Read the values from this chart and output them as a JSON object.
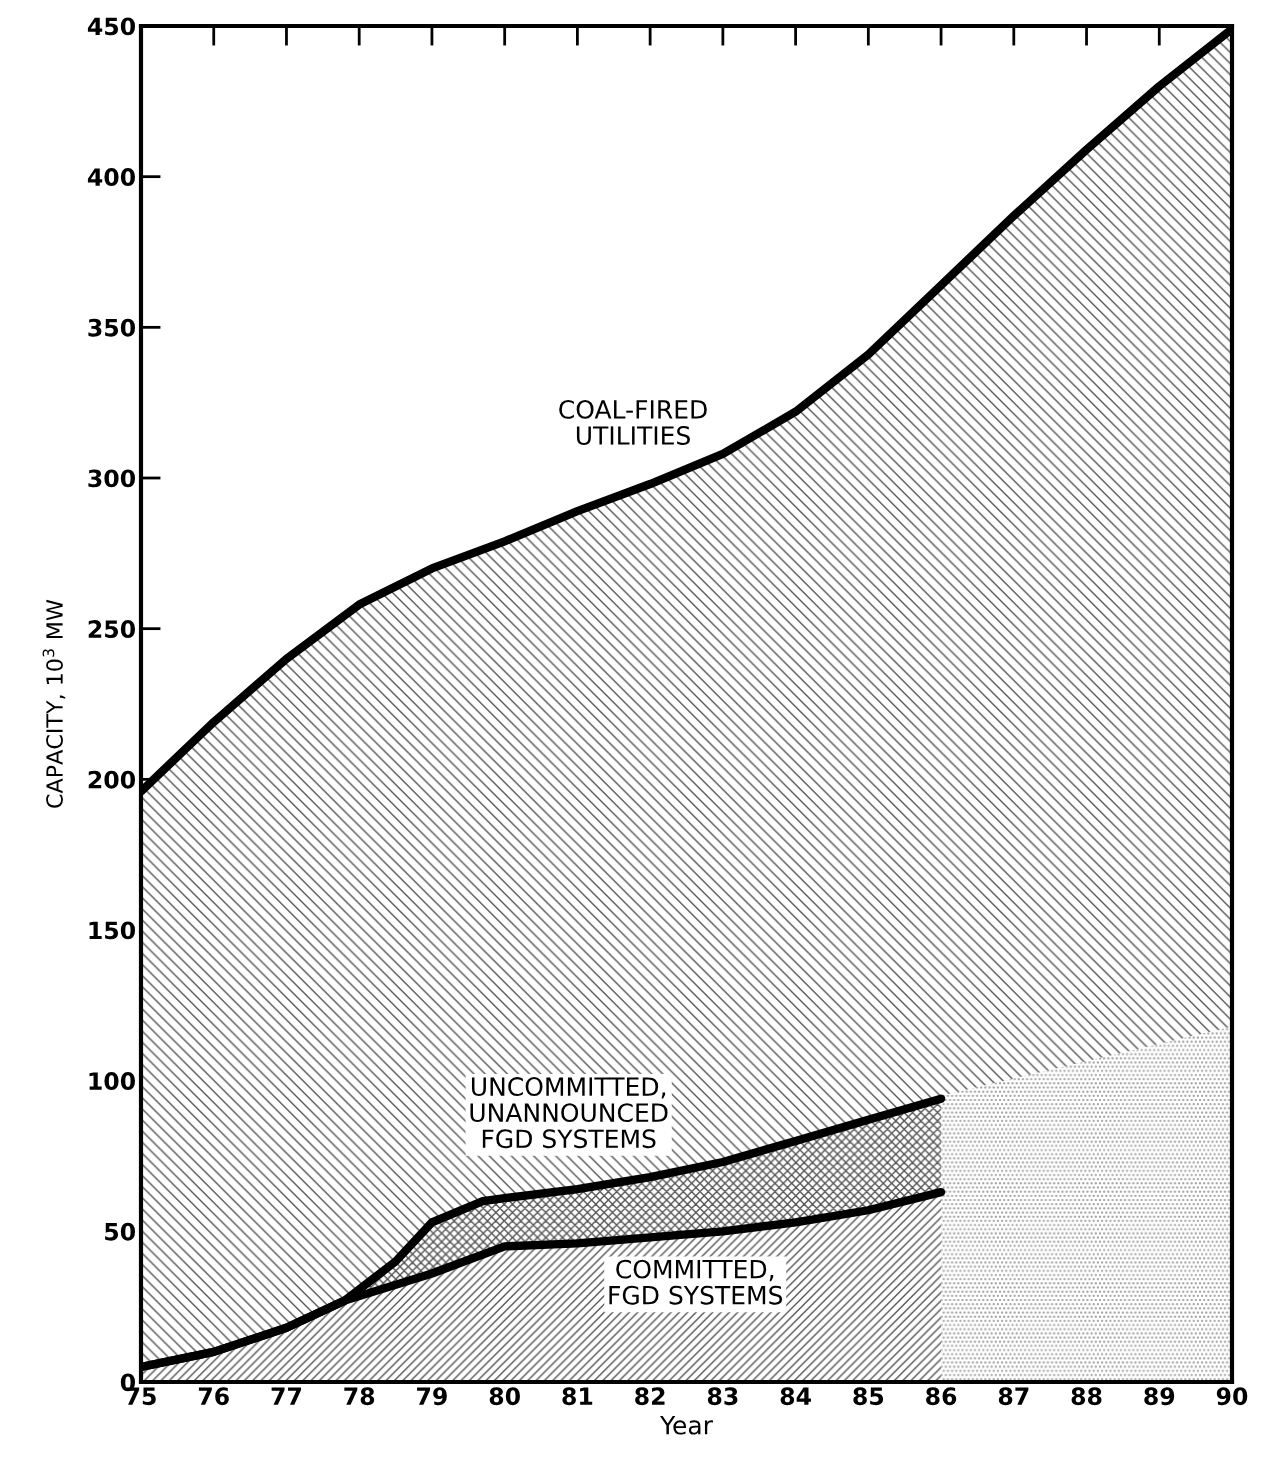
{
  "chart_data": {
    "type": "area",
    "xlabel": "Year",
    "ylabel": "CAPACITY, 10$^{3}$ MW",
    "xlim": [
      75,
      90
    ],
    "xticks": [
      75,
      76,
      77,
      78,
      79,
      80,
      81,
      82,
      83,
      84,
      85,
      86,
      87,
      88,
      89,
      90
    ],
    "ylim": [
      0,
      450
    ],
    "yticks": [
      0,
      50,
      100,
      150,
      200,
      250,
      300,
      350,
      400,
      450
    ],
    "grid": false,
    "legend": false,
    "series": [
      {
        "color": "#000000",
        "x": [
          75,
          76,
          77,
          78,
          79,
          80,
          81,
          82,
          83,
          84,
          85,
          86,
          87,
          88,
          89,
          90
        ],
        "values": [
          196,
          219,
          240,
          258,
          270,
          279,
          289,
          298,
          308,
          322,
          341,
          364,
          387,
          409,
          430,
          449
        ]
      },
      {
        "color": "#000000",
        "x": [
          75,
          76,
          77,
          77.8,
          78.5,
          79,
          79.7,
          80,
          81,
          82,
          83,
          84,
          85,
          86
        ],
        "values": [
          5,
          10,
          18,
          27,
          40,
          53,
          60,
          61,
          64,
          68,
          73,
          80,
          87,
          94
        ]
      },
      {
        "color": "#000000",
        "x": [
          75,
          76,
          77,
          77.8,
          79,
          80,
          81,
          82,
          83,
          84,
          85,
          86
        ],
        "values": [
          5,
          10,
          18,
          27,
          36,
          45,
          46,
          48,
          50,
          53,
          57,
          63
        ]
      },
      {
        "type": "area",
        "color": "#999999",
        "x": [
          86,
          90
        ],
        "values": [
          95,
          118
        ]
      }
    ],
    "annotations": [
      "COAL-FIRED\nUTILITIES",
      "UNCOMMITTED,\nUNANNOUNCED\nFGD SYSTEMS",
      "COMMITTED,\nFGD SYSTEMS"
    ]
  }
}
